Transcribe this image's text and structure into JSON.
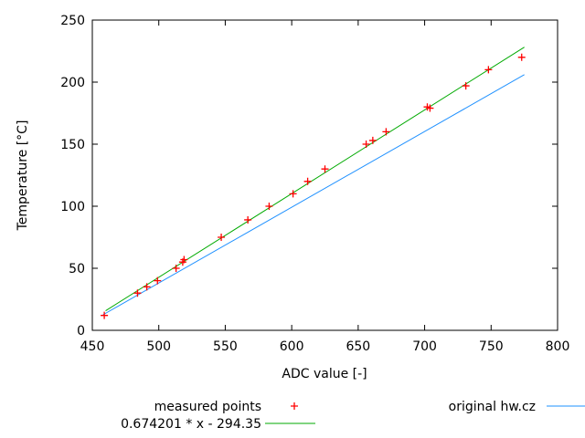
{
  "chart_data": {
    "type": "scatter",
    "xlabel": "ADC value [-]",
    "ylabel": "Temperature [°C]",
    "xlim": [
      450,
      800
    ],
    "ylim": [
      0,
      250
    ],
    "xticks": [
      450,
      500,
      550,
      600,
      650,
      700,
      750,
      800
    ],
    "yticks": [
      0,
      50,
      100,
      150,
      200,
      250
    ],
    "grid": false,
    "legend_placement": "bottom",
    "series": [
      {
        "name": "measured points",
        "kind": "points",
        "marker": "+",
        "color": "#ff0000",
        "points": [
          [
            459,
            12
          ],
          [
            484,
            30
          ],
          [
            491,
            35
          ],
          [
            499,
            40
          ],
          [
            513,
            50
          ],
          [
            518,
            55
          ],
          [
            519,
            57
          ],
          [
            547,
            75
          ],
          [
            567,
            89
          ],
          [
            583,
            100
          ],
          [
            601,
            110
          ],
          [
            612,
            120
          ],
          [
            625,
            130
          ],
          [
            656,
            150
          ],
          [
            661,
            153
          ],
          [
            671,
            160
          ],
          [
            702,
            180
          ],
          [
            704,
            179
          ],
          [
            731,
            197
          ],
          [
            748,
            210
          ],
          [
            773,
            220
          ]
        ]
      },
      {
        "name": "0.674201 * x - 294.35",
        "kind": "line",
        "color": "#00aa00",
        "slope": 0.674201,
        "intercept": -294.35,
        "x_range": [
          460,
          775
        ]
      },
      {
        "name": "original hw.cz",
        "kind": "line",
        "color": "#1e90ff",
        "points": [
          [
            458,
            12.5
          ],
          [
            775,
            206
          ]
        ]
      }
    ]
  }
}
